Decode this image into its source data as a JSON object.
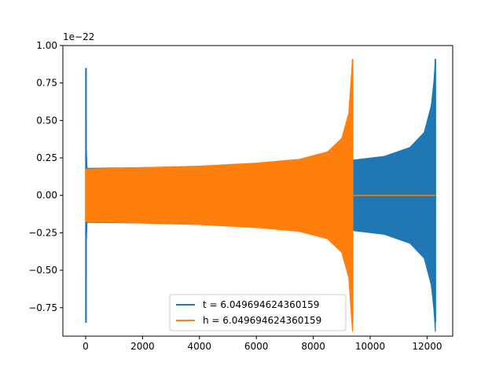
{
  "chart_data": {
    "type": "line",
    "title": "",
    "xlabel": "",
    "ylabel": "",
    "offset_label": "1e−22",
    "xlim": [
      -800,
      12900
    ],
    "ylim": [
      -0.94,
      1.0
    ],
    "x_ticks": [
      0,
      2000,
      4000,
      6000,
      8000,
      10000,
      12000
    ],
    "x_tick_labels": [
      "0",
      "2000",
      "4000",
      "6000",
      "8000",
      "10000",
      "12000"
    ],
    "y_ticks": [
      -0.75,
      -0.5,
      -0.25,
      0.0,
      0.25,
      0.5,
      0.75,
      1.0
    ],
    "y_tick_labels": [
      "−0.75",
      "−0.50",
      "−0.25",
      "0.00",
      "0.25",
      "0.50",
      "0.75",
      "1.00"
    ],
    "grid": false,
    "legend_position": "lower-center",
    "series": [
      {
        "name": "t = 6.049694624360159",
        "color": "#1f77b4",
        "envelope": [
          {
            "x": 0,
            "amp": 0.85
          },
          {
            "x": 30,
            "amp": 0.18
          },
          {
            "x": 2000,
            "amp": 0.185
          },
          {
            "x": 4000,
            "amp": 0.19
          },
          {
            "x": 6000,
            "amp": 0.2
          },
          {
            "x": 8000,
            "amp": 0.215
          },
          {
            "x": 9400,
            "amp": 0.235
          },
          {
            "x": 10500,
            "amp": 0.26
          },
          {
            "x": 11400,
            "amp": 0.32
          },
          {
            "x": 11900,
            "amp": 0.42
          },
          {
            "x": 12150,
            "amp": 0.6
          },
          {
            "x": 12250,
            "amp": 0.78
          },
          {
            "x": 12290,
            "amp": 0.91
          }
        ]
      },
      {
        "name": "h = 6.049694624360159",
        "color": "#ff7f0e",
        "envelope": [
          {
            "x": 0,
            "amp": 0.175
          },
          {
            "x": 2000,
            "amp": 0.185
          },
          {
            "x": 4000,
            "amp": 0.195
          },
          {
            "x": 6000,
            "amp": 0.215
          },
          {
            "x": 7500,
            "amp": 0.24
          },
          {
            "x": 8500,
            "amp": 0.29
          },
          {
            "x": 9000,
            "amp": 0.38
          },
          {
            "x": 9250,
            "amp": 0.55
          },
          {
            "x": 9380,
            "amp": 0.91
          }
        ],
        "flat_after": {
          "x_start": 9400,
          "x_end": 12290,
          "y": 0.0
        }
      }
    ]
  }
}
